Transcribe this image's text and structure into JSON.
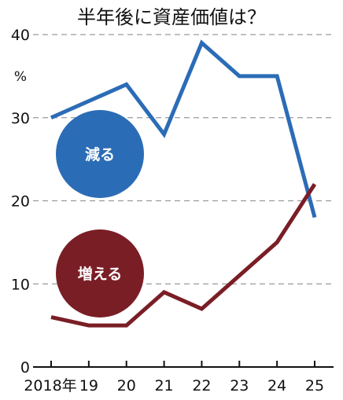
{
  "chart_data": {
    "type": "line",
    "title": "半年後に資産価値は？",
    "unit_label": "%",
    "categories": [
      "2018年",
      "19",
      "20",
      "21",
      "22",
      "23",
      "24",
      "25"
    ],
    "y_ticks": [
      0,
      10,
      20,
      30,
      40
    ],
    "ylim": [
      0,
      40
    ],
    "grid": true,
    "series": [
      {
        "name": "減る",
        "color": "#2b6cb6",
        "values": [
          30,
          32,
          34,
          28,
          39,
          35,
          35,
          18
        ]
      },
      {
        "name": "増える",
        "color": "#7a1e26",
        "values": [
          6,
          5,
          5,
          9,
          7,
          11,
          15,
          22
        ]
      }
    ]
  }
}
